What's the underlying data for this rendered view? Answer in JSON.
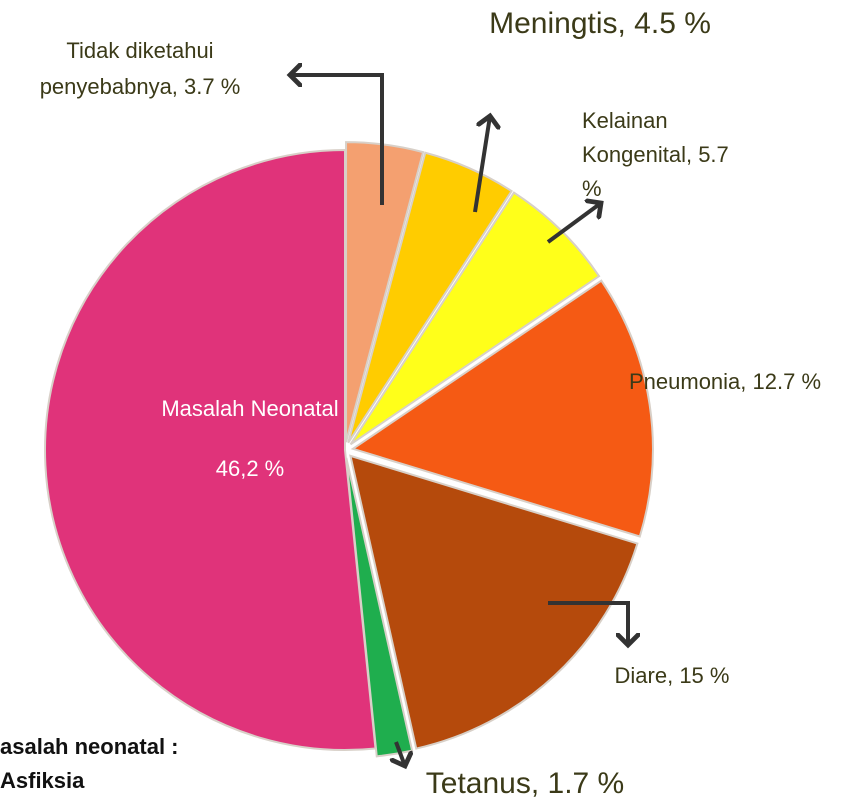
{
  "chart_data": {
    "type": "pie",
    "values": [
      3.7,
      4.5,
      5.7,
      12.7,
      15,
      1.7,
      46.2
    ],
    "value_labels": [
      [
        "Tidak diketahui",
        "penyebabnya, 3.7 %"
      ],
      [
        "Meningtis, 4.5 %"
      ],
      [
        "Kelainan",
        "Kongenital, 5.7",
        "%"
      ],
      [
        "Pneumonia, 12.7 %"
      ],
      [
        "Diare, 15 %"
      ],
      [
        "Tetanus, 1.7 %"
      ],
      [
        "Masalah Neonatal",
        "46,2 %"
      ]
    ],
    "colors": [
      "#f4a070",
      "#ffcc00",
      "#ffff1a",
      "#f55a14",
      "#b54a0c",
      "#1fae4e",
      "#e0337a"
    ],
    "annotations": [
      "asalah neonatal :",
      "Asfiksia"
    ]
  }
}
